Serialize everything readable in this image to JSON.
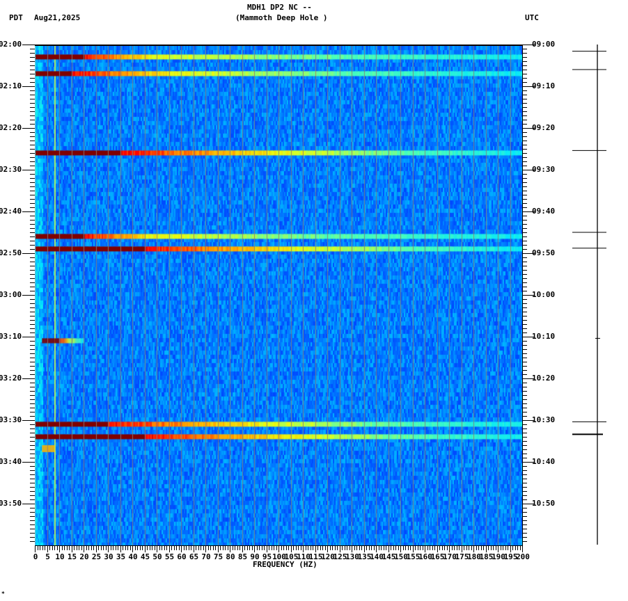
{
  "header": {
    "title_line1": "MDH1 DP2 NC --",
    "title_line2": "(Mammoth Deep Hole )",
    "left_tz": "PDT",
    "date": "Aug21,2025",
    "right_tz": "UTC"
  },
  "footer": {
    "mark": "*"
  },
  "colors": {
    "background_low": "#1a6cf0",
    "mid": "#00c8ff",
    "cyan": "#00ffff",
    "yellow": "#f0f000",
    "orange": "#ff8c00",
    "red": "#ff0000",
    "dark_red": "#800000",
    "gridline": "#808080",
    "axis": "#000000"
  },
  "chart_data": {
    "type": "heatmap",
    "title": "MDH1 DP2 NC -- (Mammoth Deep Hole )",
    "subtitle": "Aug21,2025",
    "xlabel": "FREQUENCY (HZ)",
    "ylabel_left": "PDT",
    "ylabel_right": "UTC",
    "xlim": [
      0,
      200
    ],
    "x_ticks": [
      0,
      5,
      10,
      15,
      20,
      25,
      30,
      35,
      40,
      45,
      50,
      55,
      60,
      65,
      70,
      75,
      80,
      85,
      90,
      95,
      100,
      105,
      110,
      115,
      120,
      125,
      130,
      135,
      140,
      145,
      150,
      155,
      160,
      165,
      170,
      175,
      180,
      185,
      190,
      195,
      200
    ],
    "x_tick_labels": [
      "0",
      "5",
      "10",
      "15",
      "20",
      "25",
      "30",
      "35",
      "40",
      "45",
      "50",
      "55",
      "60",
      "65",
      "70",
      "75",
      "80",
      "85",
      "90",
      "95",
      "100",
      "105",
      "110",
      "115",
      "120",
      "125",
      "130",
      "135",
      "140",
      "145",
      "150",
      "155",
      "160",
      "165",
      "170",
      "175",
      "180",
      "185",
      "190",
      "195",
      "200"
    ],
    "y_range_minutes": [
      0,
      120
    ],
    "y_left_labels": [
      "02:00",
      "02:10",
      "02:20",
      "02:30",
      "02:40",
      "02:50",
      "03:00",
      "03:10",
      "03:20",
      "03:30",
      "03:40",
      "03:50"
    ],
    "y_right_labels": [
      "09:00",
      "09:10",
      "09:20",
      "09:30",
      "09:40",
      "09:50",
      "10:00",
      "10:10",
      "10:20",
      "10:30",
      "10:40",
      "10:50"
    ],
    "y_minor_tick_interval_minutes": 1,
    "grid": "vertical gridlines every 5 Hz",
    "persistent_line_hz": 8,
    "events": [
      {
        "time_pdt": "02:02.5",
        "minute": 2.4,
        "red_to_hz": 20,
        "yellow_to_hz": 50,
        "fade_hz": 200,
        "intensity": "strong"
      },
      {
        "time_pdt": "02:06.5",
        "minute": 6.4,
        "red_to_hz": 15,
        "yellow_to_hz": 60,
        "fade_hz": 200,
        "intensity": "strong",
        "note": "red spike at 60 Hz"
      },
      {
        "time_pdt": "02:25.5",
        "minute": 25.4,
        "red_to_hz": 35,
        "yellow_to_hz": 105,
        "fade_hz": 200,
        "intensity": "strong"
      },
      {
        "time_pdt": "02:45.5",
        "minute": 45.4,
        "red_to_hz": 20,
        "yellow_to_hz": 50,
        "fade_hz": 200,
        "intensity": "strong"
      },
      {
        "time_pdt": "02:48.5",
        "minute": 48.4,
        "red_to_hz": 45,
        "yellow_to_hz": 110,
        "fade_hz": 200,
        "intensity": "strong"
      },
      {
        "time_pdt": "03:10.5",
        "minute": 70.4,
        "red_from_hz": 3,
        "red_to_hz": 10,
        "yellow_to_hz": 14,
        "fade_hz": 20,
        "intensity": "local"
      },
      {
        "time_pdt": "03:30.5",
        "minute": 90.4,
        "red_to_hz": 30,
        "yellow_to_hz": 95,
        "fade_hz": 200,
        "intensity": "strong"
      },
      {
        "time_pdt": "03:33.5",
        "minute": 93.4,
        "red_to_hz": 45,
        "yellow_to_hz": 110,
        "fade_hz": 200,
        "intensity": "strong"
      },
      {
        "time_pdt": "03:36",
        "minute": 96,
        "red_from_hz": 3,
        "red_to_hz": 7,
        "yellow_to_hz": 8,
        "fade_hz": 8,
        "intensity": "weak"
      }
    ],
    "trace_markers_minutes": [
      {
        "minute": 1.6,
        "type": "line"
      },
      {
        "minute": 6.0,
        "type": "line"
      },
      {
        "minute": 25.4,
        "type": "line"
      },
      {
        "minute": 45.0,
        "type": "line"
      },
      {
        "minute": 48.8,
        "type": "line"
      },
      {
        "minute": 70.4,
        "type": "small"
      },
      {
        "minute": 90.4,
        "type": "line"
      },
      {
        "minute": 93.4,
        "type": "bold"
      }
    ]
  }
}
